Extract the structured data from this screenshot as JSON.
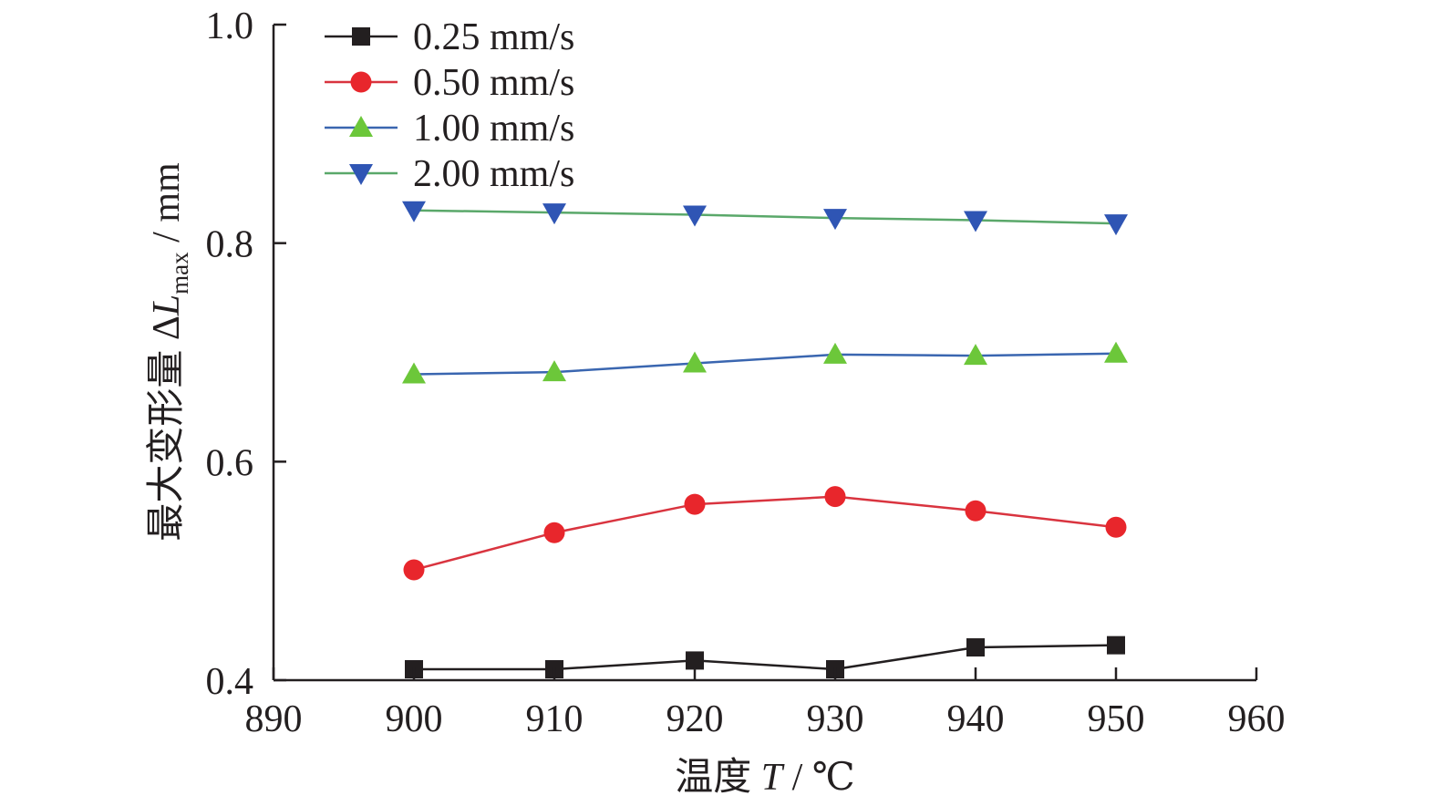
{
  "chart_data": {
    "type": "line",
    "xlabel_prefix": "温度 ",
    "xlabel_var": "T",
    "xlabel_unit": " / ℃",
    "ylabel_prefix": "最大变形量 Δ",
    "ylabel_var": "L",
    "ylabel_sub": "max",
    "ylabel_unit": " / mm",
    "xlim": [
      890,
      960
    ],
    "ylim": [
      0.4,
      1.0
    ],
    "xticks": [
      890,
      900,
      910,
      920,
      930,
      940,
      950,
      960
    ],
    "xtick_labels": [
      "890",
      "900",
      "910",
      "920",
      "930",
      "940",
      "950",
      "960"
    ],
    "yticks": [
      0.4,
      0.6,
      0.8,
      1.0
    ],
    "ytick_labels": [
      "0.4",
      "0.6",
      "0.8",
      "1.0"
    ],
    "grid": false,
    "legend_position": "top-left",
    "x": [
      900,
      910,
      920,
      930,
      940,
      950
    ],
    "series": [
      {
        "name": "0.25 mm/s",
        "marker": "square",
        "line_color": "#231f20",
        "marker_color": "#231f20",
        "values": [
          0.41,
          0.41,
          0.418,
          0.41,
          0.43,
          0.432
        ]
      },
      {
        "name": "0.50 mm/s",
        "marker": "circle",
        "line_color": "#d9343f",
        "marker_color": "#e8262c",
        "values": [
          0.501,
          0.535,
          0.561,
          0.568,
          0.555,
          0.54
        ]
      },
      {
        "name": "1.00 mm/s",
        "marker": "triangle-up",
        "line_color": "#3a66b0",
        "marker_color": "#6cc73a",
        "values": [
          0.68,
          0.682,
          0.69,
          0.698,
          0.697,
          0.699
        ]
      },
      {
        "name": "2.00 mm/s",
        "marker": "triangle-down",
        "line_color": "#5aa86a",
        "marker_color": "#2f55b4",
        "values": [
          0.83,
          0.828,
          0.826,
          0.823,
          0.821,
          0.818
        ]
      }
    ]
  }
}
